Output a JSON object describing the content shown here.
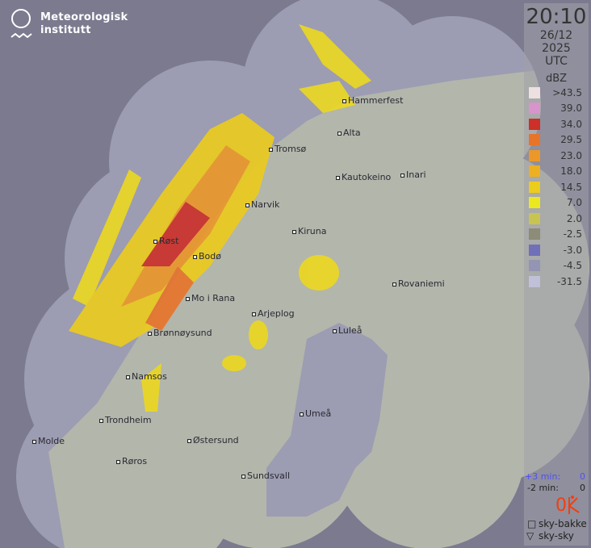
{
  "logo": {
    "line1": "Meteorologisk",
    "line2": "institutt"
  },
  "panel": {
    "time": "20:10",
    "date": "26/12 2025",
    "timezone": "UTC",
    "unit": "dBZ"
  },
  "legend": [
    {
      "label": ">43.5",
      "color": "#ece0e2"
    },
    {
      "label": "39.0",
      "color": "#d894cc"
    },
    {
      "label": "34.0",
      "color": "#cc3028"
    },
    {
      "label": "29.5",
      "color": "#e8742a"
    },
    {
      "label": "23.0",
      "color": "#ec9828"
    },
    {
      "label": "18.0",
      "color": "#ecb020"
    },
    {
      "label": "14.5",
      "color": "#eccc1c"
    },
    {
      "label": "7.0",
      "color": "#ece820"
    },
    {
      "label": "2.0",
      "color": "#c8c450"
    },
    {
      "label": "-2.5",
      "color": "#8c8c78"
    },
    {
      "label": "-3.0",
      "color": "#7070b8"
    },
    {
      "label": "-4.5",
      "color": "#9494b4"
    },
    {
      "label": "-31.5",
      "color": "#c0c0d8"
    }
  ],
  "lightning": {
    "plus3_label": "+3 min:",
    "plus3_value": "0",
    "minus2_label": "-2 min:",
    "minus2_value": "0",
    "count": "0",
    "ground_label": "sky-bakke",
    "cloud_label": "sky-sky",
    "accent": "#f04010"
  },
  "cities": [
    "Hammerfest",
    "Alta",
    "Tromsø",
    "Kautokeino",
    "Inari",
    "Narvik",
    "Kiruna",
    "Røst",
    "Bodø",
    "Mo i Rana",
    "Rovaniemi",
    "Arjeplog",
    "Luleå",
    "Brønnøysund",
    "Namsos",
    "Umeå",
    "Trondheim",
    "Molde",
    "Østersund",
    "Røros",
    "Sundsvall"
  ]
}
